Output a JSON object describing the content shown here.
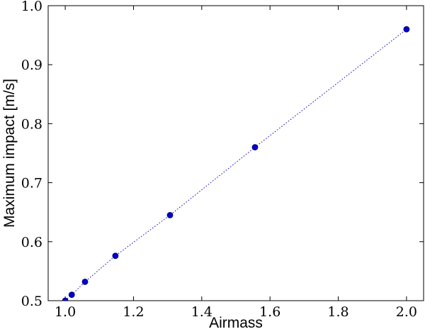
{
  "chart_data": {
    "type": "scatter",
    "xlabel": "Airmass",
    "ylabel": "Maximum impact [m/s]",
    "x": [
      1.0,
      1.019,
      1.058,
      1.147,
      1.307,
      1.556,
      2.0
    ],
    "series": [
      {
        "color": "#0000cc",
        "values": [
          0.5,
          0.51,
          0.532,
          0.576,
          0.645,
          0.76,
          0.96
        ]
      }
    ],
    "line_style": "dotted",
    "xlim": [
      0.95,
      2.05
    ],
    "ylim": [
      0.5,
      1.0
    ],
    "xticks": [
      {
        "value": 1.0,
        "label": "1.0"
      },
      1.2,
      1.4,
      1.6,
      1.8,
      {
        "value": 2.0,
        "label": "2.0"
      }
    ],
    "yticks": [
      0.5,
      0.6,
      0.7,
      0.8,
      0.9,
      {
        "value": 1.0,
        "label": "1.0"
      }
    ],
    "grid": false
  }
}
